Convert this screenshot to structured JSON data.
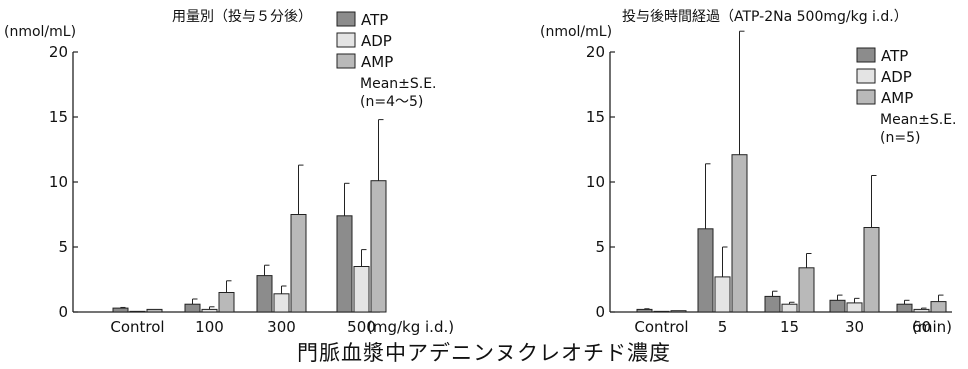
{
  "caption": "門脈血漿中アデニンヌクレオチド濃度",
  "colors": {
    "ATP": "#8c8c8c",
    "ADP": "#e4e4e4",
    "AMP": "#b9b9b9",
    "stroke": "#222222"
  },
  "chart_data": [
    {
      "type": "bar",
      "title": "用量別（投与５分後）",
      "ylabel": "(nmol/mL)",
      "xunit": "(mg/kg i.d.)",
      "ylim": [
        0,
        20
      ],
      "yticks": [
        0,
        5,
        10,
        15,
        20
      ],
      "categories": [
        "Control",
        "100",
        "300",
        "500"
      ],
      "series": [
        {
          "name": "ATP",
          "values": [
            0.3,
            0.6,
            2.8,
            7.4
          ],
          "errors": [
            0.05,
            0.4,
            0.8,
            2.5
          ]
        },
        {
          "name": "ADP",
          "values": [
            0.05,
            0.2,
            1.4,
            3.5
          ],
          "errors": [
            0.02,
            0.2,
            0.6,
            1.3
          ]
        },
        {
          "name": "AMP",
          "values": [
            0.2,
            1.5,
            7.5,
            10.1
          ],
          "errors": [
            0.03,
            0.9,
            3.8,
            4.7
          ]
        }
      ],
      "legend": [
        "ATP",
        "ADP",
        "AMP"
      ],
      "legend_position": "top-right",
      "note": [
        "Mean±S.E.",
        "(n=4〜5)"
      ]
    },
    {
      "type": "bar",
      "title": "投与後時間経過（ATP-2Na 500mg/kg i.d.）",
      "ylabel": "(nmol/mL)",
      "xunit": "(min)",
      "ylim": [
        0,
        20
      ],
      "yticks": [
        0,
        5,
        10,
        15,
        20
      ],
      "categories": [
        "Control",
        "5",
        "15",
        "30",
        "60"
      ],
      "series": [
        {
          "name": "ATP",
          "values": [
            0.2,
            6.4,
            1.2,
            0.9,
            0.6
          ],
          "errors": [
            0.05,
            5.0,
            0.4,
            0.4,
            0.3
          ]
        },
        {
          "name": "ADP",
          "values": [
            0.05,
            2.7,
            0.6,
            0.7,
            0.2
          ],
          "errors": [
            0.02,
            2.3,
            0.15,
            0.35,
            0.1
          ]
        },
        {
          "name": "AMP",
          "values": [
            0.1,
            12.1,
            3.4,
            6.5,
            0.8
          ],
          "errors": [
            0.03,
            9.5,
            1.1,
            4.0,
            0.5
          ]
        }
      ],
      "legend": [
        "ATP",
        "ADP",
        "AMP"
      ],
      "legend_position": "top-right",
      "note": [
        "Mean±S.E.",
        "(n=5)"
      ]
    }
  ]
}
